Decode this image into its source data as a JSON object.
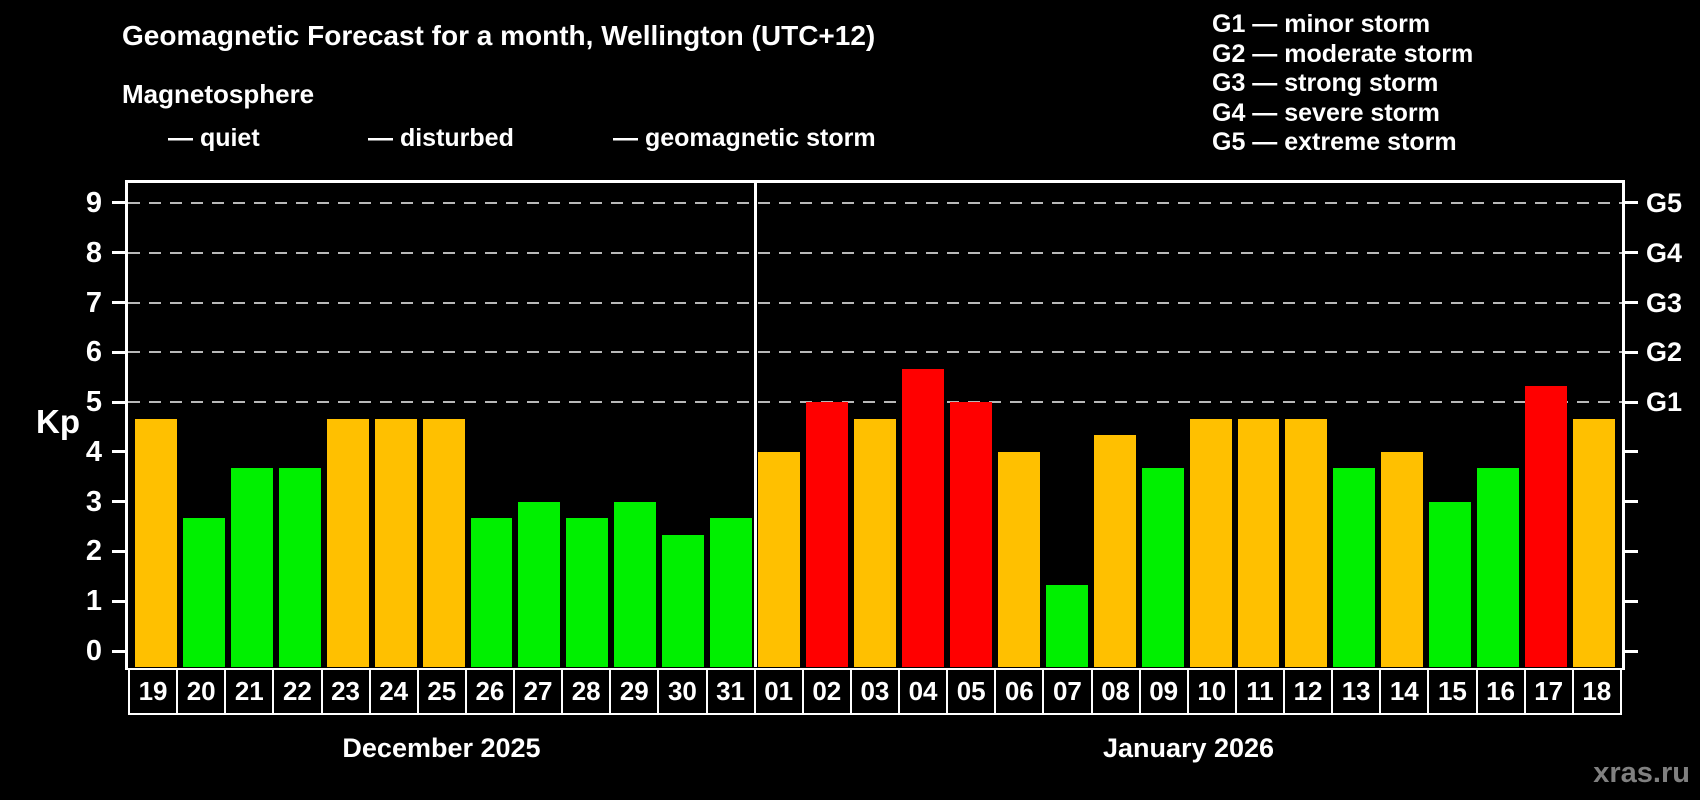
{
  "header": {
    "title": "Geomagnetic Forecast for a month, Wellington (UTC+12)",
    "subtitle": "Magnetosphere"
  },
  "legend": {
    "quiet": "— quiet",
    "disturbed": "— disturbed",
    "storm": "— geomagnetic storm"
  },
  "storm_scale": {
    "lines": [
      "G1 — minor storm",
      "G2 — moderate storm",
      "G3 — strong storm",
      "G4 — severe storm",
      "G5 — extreme storm"
    ]
  },
  "axis": {
    "kp_label": "Kp"
  },
  "watermark": "xras.ru",
  "colors": {
    "quiet": "#00F000",
    "disturbed": "#FFC000",
    "storm": "#FF0000",
    "gridline": "#B8B8B8",
    "axis": "#FFFFFF",
    "background": "#000000"
  },
  "chart_data": {
    "type": "bar",
    "title": "Geomagnetic Forecast for a month, Wellington (UTC+12)",
    "xlabel": "",
    "ylabel": "Kp",
    "ylim": [
      0,
      9
    ],
    "yticks": [
      0,
      1,
      2,
      3,
      4,
      5,
      6,
      7,
      8,
      9
    ],
    "gridlines_kp": [
      5,
      6,
      7,
      8,
      9
    ],
    "grid": "dashed-horizontal",
    "legend_position": "top-left",
    "right_axis_labels": [
      {
        "label": "G1",
        "kp": 5
      },
      {
        "label": "G2",
        "kp": 6
      },
      {
        "label": "G3",
        "kp": 7
      },
      {
        "label": "G4",
        "kp": 8
      },
      {
        "label": "G5",
        "kp": 9
      }
    ],
    "months": [
      {
        "label": "December 2025",
        "days": [
          {
            "day": "19",
            "kp": 4.67,
            "status": "disturbed"
          },
          {
            "day": "20",
            "kp": 2.67,
            "status": "quiet"
          },
          {
            "day": "21",
            "kp": 3.67,
            "status": "quiet"
          },
          {
            "day": "22",
            "kp": 3.67,
            "status": "quiet"
          },
          {
            "day": "23",
            "kp": 4.67,
            "status": "disturbed"
          },
          {
            "day": "24",
            "kp": 4.67,
            "status": "disturbed"
          },
          {
            "day": "25",
            "kp": 4.67,
            "status": "disturbed"
          },
          {
            "day": "26",
            "kp": 2.67,
            "status": "quiet"
          },
          {
            "day": "27",
            "kp": 3.0,
            "status": "quiet"
          },
          {
            "day": "28",
            "kp": 2.67,
            "status": "quiet"
          },
          {
            "day": "29",
            "kp": 3.0,
            "status": "quiet"
          },
          {
            "day": "30",
            "kp": 2.33,
            "status": "quiet"
          },
          {
            "day": "31",
            "kp": 2.67,
            "status": "quiet"
          }
        ]
      },
      {
        "label": "January 2026",
        "days": [
          {
            "day": "01",
            "kp": 4.0,
            "status": "disturbed"
          },
          {
            "day": "02",
            "kp": 5.0,
            "status": "storm"
          },
          {
            "day": "03",
            "kp": 4.67,
            "status": "disturbed"
          },
          {
            "day": "04",
            "kp": 5.67,
            "status": "storm"
          },
          {
            "day": "05",
            "kp": 5.0,
            "status": "storm"
          },
          {
            "day": "06",
            "kp": 4.0,
            "status": "disturbed"
          },
          {
            "day": "07",
            "kp": 1.33,
            "status": "quiet"
          },
          {
            "day": "08",
            "kp": 4.33,
            "status": "disturbed"
          },
          {
            "day": "09",
            "kp": 3.67,
            "status": "quiet"
          },
          {
            "day": "10",
            "kp": 4.67,
            "status": "disturbed"
          },
          {
            "day": "11",
            "kp": 4.67,
            "status": "disturbed"
          },
          {
            "day": "12",
            "kp": 4.67,
            "status": "disturbed"
          },
          {
            "day": "13",
            "kp": 3.67,
            "status": "quiet"
          },
          {
            "day": "14",
            "kp": 4.0,
            "status": "disturbed"
          },
          {
            "day": "15",
            "kp": 3.0,
            "status": "quiet"
          },
          {
            "day": "16",
            "kp": 3.67,
            "status": "quiet"
          },
          {
            "day": "17",
            "kp": 5.33,
            "status": "storm"
          },
          {
            "day": "18",
            "kp": 4.67,
            "status": "disturbed"
          }
        ]
      }
    ]
  }
}
